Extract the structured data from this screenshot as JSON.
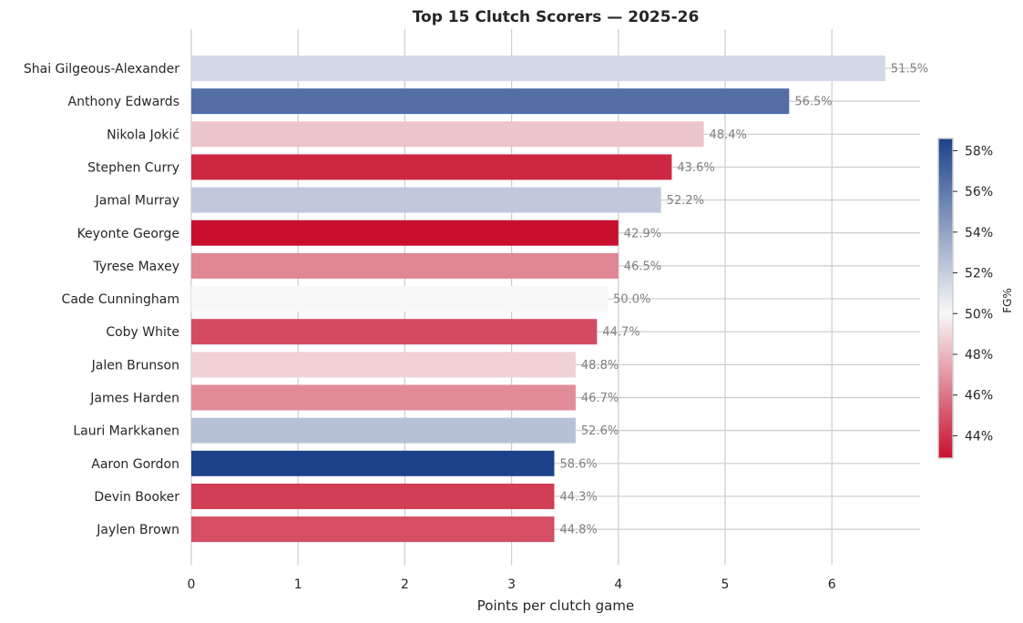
{
  "chart_data": {
    "type": "bar",
    "orientation": "horizontal",
    "title": "Top 15 Clutch Scorers — 2025-26",
    "xlabel": "Points per clutch game",
    "ylabel": "",
    "xlim": [
      0,
      6.8
    ],
    "xticks": [
      "0",
      "1",
      "2",
      "3",
      "4",
      "5",
      "6"
    ],
    "grid": true,
    "categories": [
      "Shai Gilgeous-Alexander",
      "Anthony Edwards",
      "Nikola Jokić",
      "Stephen Curry",
      "Jamal Murray",
      "Keyonte George",
      "Tyrese Maxey",
      "Cade Cunningham",
      "Coby White",
      "Jalen Brunson",
      "James Harden",
      "Lauri Markkanen",
      "Aaron Gordon",
      "Devin Booker",
      "Jaylen Brown"
    ],
    "values": [
      6.5,
      5.6,
      4.8,
      4.5,
      4.4,
      4.0,
      4.0,
      3.9,
      3.8,
      3.6,
      3.6,
      3.6,
      3.4,
      3.4,
      3.4
    ],
    "color_values": [
      51.5,
      56.5,
      48.4,
      43.6,
      52.2,
      42.9,
      46.5,
      50.0,
      44.7,
      48.8,
      46.7,
      52.6,
      58.6,
      44.3,
      44.8
    ],
    "bar_labels": [
      "51.5%",
      "56.5%",
      "48.4%",
      "43.6%",
      "52.2%",
      "42.9%",
      "46.5%",
      "50.0%",
      "44.7%",
      "48.8%",
      "46.7%",
      "52.6%",
      "58.6%",
      "44.3%",
      "44.8%"
    ],
    "colorbar": {
      "label": "FG%",
      "range": [
        42.9,
        58.6
      ],
      "center": 50,
      "ticks": [
        44,
        46,
        48,
        50,
        52,
        54,
        56,
        58
      ],
      "tick_labels": [
        "44%",
        "46%",
        "48%",
        "50%",
        "52%",
        "54%",
        "56%",
        "58%"
      ],
      "colormap": [
        "#c8102e",
        "#f8f8f8",
        "#1d428a"
      ]
    }
  }
}
